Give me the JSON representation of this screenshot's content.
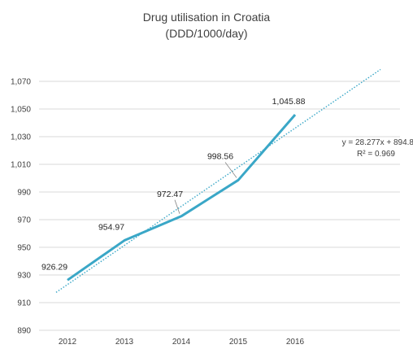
{
  "chart_data": {
    "type": "line",
    "title": "Drug utilisation in Croatia",
    "subtitle": "(DDD/1000/day)",
    "categories": [
      "2012",
      "2013",
      "2014",
      "2015",
      "2016"
    ],
    "series": [
      {
        "values": [
          926.29,
          954.97,
          972.47,
          998.56,
          1045.88
        ],
        "color": "#3aa7c7"
      }
    ],
    "data_labels": [
      "926.29",
      "954.97",
      "972.47",
      "998.56",
      "1,045.88"
    ],
    "ylim": [
      890,
      1070
    ],
    "yticks": [
      890,
      910,
      930,
      950,
      970,
      990,
      1010,
      1030,
      1050,
      1070
    ],
    "ytick_labels": [
      "890",
      "910",
      "930",
      "950",
      "970",
      "990",
      "1,010",
      "1,030",
      "1,050",
      "1,070"
    ],
    "grid": true,
    "trendline": {
      "type": "linear",
      "slope": 28.277,
      "intercept": 894.8,
      "x_range": [
        0.8,
        6.5
      ],
      "equation": "y = 28.277x + 894.8",
      "r_squared": "R² = 0.969",
      "color": "#3aa7c7"
    },
    "gridline_color": "#d9d9d9",
    "text_color": "#404040"
  }
}
